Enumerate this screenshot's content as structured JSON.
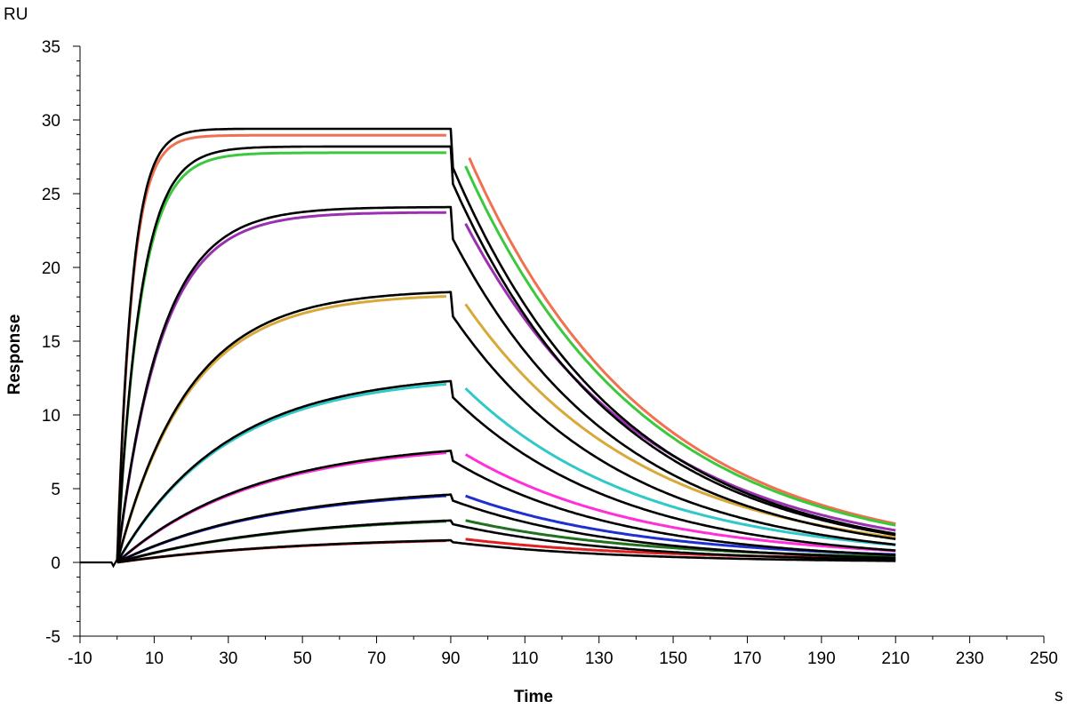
{
  "chart_data": {
    "type": "line",
    "title": "",
    "xlabel": "Time",
    "ylabel": "Response",
    "x_unit": "s",
    "y_unit": "RU",
    "xlim": [
      -10,
      250
    ],
    "ylim": [
      -5,
      35
    ],
    "x_ticks": [
      "-10",
      "10",
      "30",
      "50",
      "70",
      "90",
      "110",
      "130",
      "150",
      "170",
      "190",
      "210",
      "230",
      "250"
    ],
    "y_ticks": [
      "-5",
      "0",
      "5",
      "10",
      "15",
      "20",
      "25",
      "30",
      "35"
    ],
    "grid": false,
    "legend": "none",
    "kinetics": {
      "injection_start": 0,
      "injection_end": 90,
      "curve_end": 210,
      "baseline_start": -10
    },
    "series": [
      {
        "color": "#f07050",
        "plateau": 29.4,
        "kon_obs": 0.25,
        "koff": 0.022,
        "dissoc_start": 95
      },
      {
        "color": "#3cc83c",
        "plateau": 28.2,
        "kon_obs": 0.16,
        "koff": 0.022,
        "dissoc_start": 94
      },
      {
        "color": "#9a30b0",
        "plateau": 24.1,
        "kon_obs": 0.085,
        "koff": 0.022,
        "dissoc_start": 94
      },
      {
        "color": "#d8a838",
        "plateau": 18.5,
        "kon_obs": 0.052,
        "koff": 0.022,
        "dissoc_start": 94
      },
      {
        "color": "#30c8c8",
        "plateau": 12.9,
        "kon_obs": 0.034,
        "koff": 0.022,
        "dissoc_start": 94
      },
      {
        "color": "#ff30d8",
        "plateau": 8.3,
        "kon_obs": 0.027,
        "koff": 0.022,
        "dissoc_start": 94
      },
      {
        "color": "#2030d0",
        "plateau": 5.2,
        "kon_obs": 0.024,
        "koff": 0.022,
        "dissoc_start": 94
      },
      {
        "color": "#207020",
        "plateau": 3.3,
        "kon_obs": 0.022,
        "koff": 0.022,
        "dissoc_start": 94
      },
      {
        "color": "#e02020",
        "plateau": 1.8,
        "kon_obs": 0.02,
        "koff": 0.022,
        "dissoc_start": 94
      }
    ],
    "fit_color": "#000000"
  }
}
